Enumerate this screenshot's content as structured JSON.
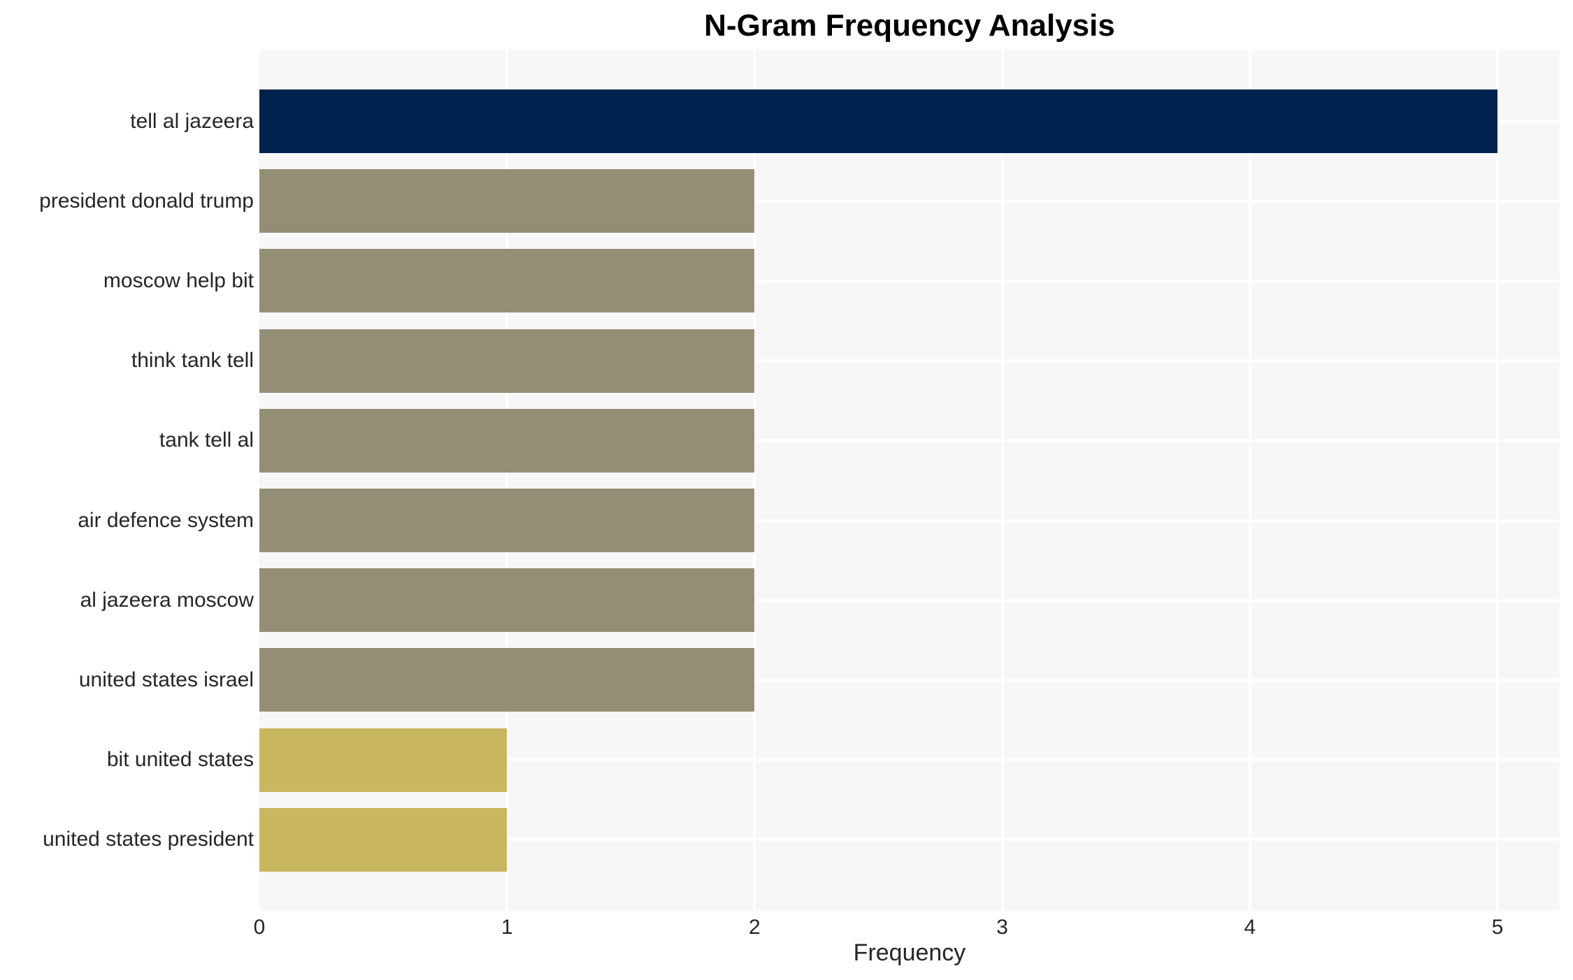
{
  "title": "N-Gram Frequency Analysis",
  "chart_data": {
    "type": "bar",
    "orientation": "horizontal",
    "title": "N-Gram Frequency Analysis",
    "xlabel": "Frequency",
    "ylabel": "",
    "categories": [
      "tell al jazeera",
      "president donald trump",
      "moscow help bit",
      "think tank tell",
      "tank tell al",
      "air defence system",
      "al jazeera moscow",
      "united states israel",
      "bit united states",
      "united states president"
    ],
    "values": [
      5,
      2,
      2,
      2,
      2,
      2,
      2,
      2,
      1,
      1
    ],
    "bar_colors": [
      "#00224e",
      "#948e75",
      "#948e75",
      "#948e75",
      "#948e75",
      "#948e75",
      "#948e75",
      "#948e75",
      "#c8b75f",
      "#c8b75f"
    ],
    "xticks": [
      0,
      1,
      2,
      3,
      4,
      5
    ],
    "xlim": [
      0,
      5.25
    ],
    "grid": true,
    "legend": false,
    "plot_bg_color": "#f7f7f8",
    "grid_color": "#ffffff",
    "text_color": "#262626",
    "title_color": "#000000"
  }
}
